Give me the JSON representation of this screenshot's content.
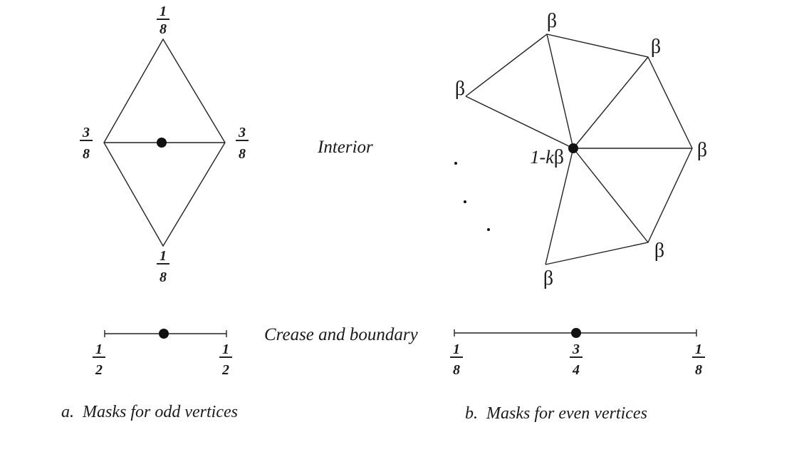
{
  "labels": {
    "interior": "Interior",
    "crease_boundary": "Crease and boundary",
    "caption_a": "a.  Masks for odd vertices",
    "caption_b": "b.  Masks for even vertices"
  },
  "odd_interior": {
    "top": {
      "num": "1",
      "den": "8"
    },
    "bottom": {
      "num": "1",
      "den": "8"
    },
    "left": {
      "num": "3",
      "den": "8"
    },
    "right": {
      "num": "3",
      "den": "8"
    }
  },
  "odd_crease": {
    "left": {
      "num": "1",
      "den": "2"
    },
    "right": {
      "num": "1",
      "den": "2"
    }
  },
  "even_interior": {
    "center_prefix": "1-",
    "center_k": "k",
    "center_beta": "β",
    "neighbor": "β"
  },
  "even_crease": {
    "left": {
      "num": "1",
      "den": "8"
    },
    "center": {
      "num": "3",
      "den": "4"
    },
    "right": {
      "num": "1",
      "den": "8"
    }
  }
}
